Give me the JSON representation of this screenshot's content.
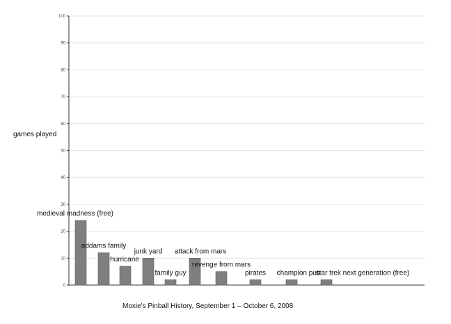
{
  "chart_data": {
    "type": "bar",
    "title": "Moxie's Pinball History, September 1 – October 6, 2008",
    "ylabel": "games played",
    "xlabel": "",
    "ylim": [
      0,
      100
    ],
    "yticks": [
      0,
      10,
      20,
      30,
      40,
      50,
      60,
      70,
      80,
      90,
      100
    ],
    "grid": true,
    "legend": "none",
    "categories": [
      "medieval madness (free)",
      "addams family",
      "hurricane",
      "junk yard",
      "family guy",
      "attack from mars",
      "revenge from mars",
      "pirates",
      "champion pub",
      "star trek next generation (free)"
    ],
    "values": [
      24,
      12,
      7,
      10,
      2,
      10,
      5,
      2,
      2,
      2
    ],
    "colors": {
      "bar": "#7f7f7f",
      "bar_edge": "#5e5e5e",
      "grid": "#e3e3e3",
      "axis": "#333333"
    }
  }
}
